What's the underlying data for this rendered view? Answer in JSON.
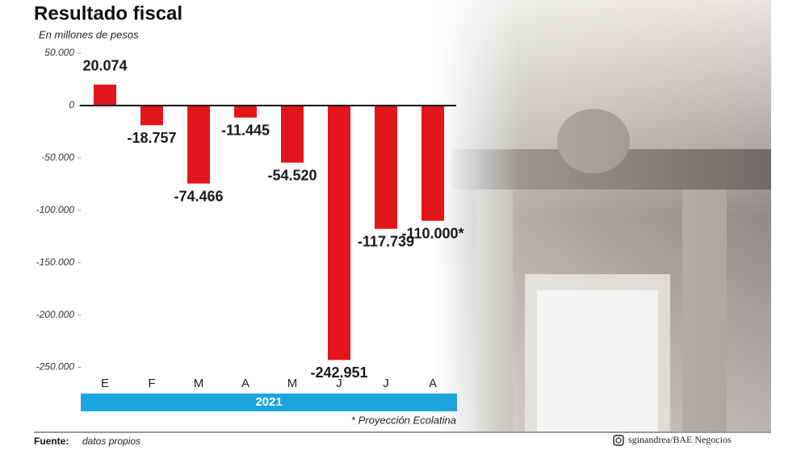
{
  "chart_data": {
    "type": "bar",
    "title": "Resultado fiscal",
    "subtitle": "En millones de pesos",
    "categories": [
      "E",
      "F",
      "M",
      "A",
      "M",
      "J",
      "J",
      "A"
    ],
    "values": [
      20074,
      -18757,
      -74466,
      -11445,
      -54520,
      -242951,
      -117739,
      -110000
    ],
    "value_labels": [
      "20.074",
      "-18.757",
      "-74.466",
      "-11.445",
      "-54.520",
      "-242.951",
      "-117.739",
      "-110.000*"
    ],
    "color": "#e3161b",
    "ylim": [
      -255000,
      50000
    ],
    "yticks": [
      {
        "value": 50000,
        "label": "50.000"
      },
      0,
      {
        "value": -50000,
        "label": "-50.000"
      },
      {
        "value": -100000,
        "label": "-100.000"
      },
      {
        "value": -150000,
        "label": "-150.000"
      },
      {
        "value": -200000,
        "label": "-200.000"
      },
      {
        "value": -250000,
        "label": "-250.000"
      }
    ],
    "year_label": "2021",
    "note": "* Proyección Ecolatina",
    "source_label": "Fuente:",
    "source": "datos propios",
    "credit": "sginandrea/BAE Negocios"
  }
}
